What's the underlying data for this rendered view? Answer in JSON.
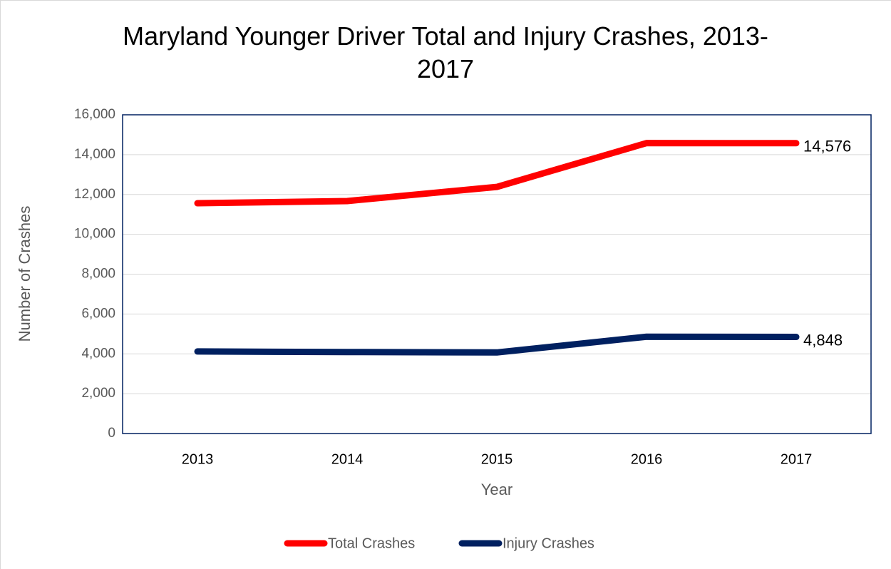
{
  "chart_data": {
    "type": "line",
    "title": "Maryland Younger Driver Total and Injury Crashes, 2013-2017",
    "x_label": "Year",
    "y_label": "Number of Crashes",
    "categories": [
      "2013",
      "2014",
      "2015",
      "2016",
      "2017"
    ],
    "series": [
      {
        "name": "Total Crashes",
        "color": "#ff0000",
        "values": [
          11560,
          11670,
          12380,
          14580,
          14576
        ],
        "value_labels": [
          null,
          null,
          null,
          null,
          "14,576"
        ]
      },
      {
        "name": "Injury Crashes",
        "color": "#002060",
        "values": [
          4120,
          4090,
          4070,
          4860,
          4848
        ],
        "value_labels": [
          null,
          null,
          null,
          null,
          "4,848"
        ]
      }
    ],
    "ylim": [
      0,
      16000
    ],
    "yticks": [
      0,
      {
        "value": 2000,
        "label": "2,000"
      },
      {
        "value": 4000,
        "label": "4,000"
      },
      {
        "value": 6000,
        "label": "6,000"
      },
      {
        "value": 8000,
        "label": "8,000"
      },
      {
        "value": 10000,
        "label": "10,000"
      },
      {
        "value": 12000,
        "label": "12,000"
      },
      {
        "value": 14000,
        "label": "14,000"
      },
      {
        "value": 16000,
        "label": "16,000"
      }
    ],
    "grid": true,
    "legend": "bottom"
  }
}
